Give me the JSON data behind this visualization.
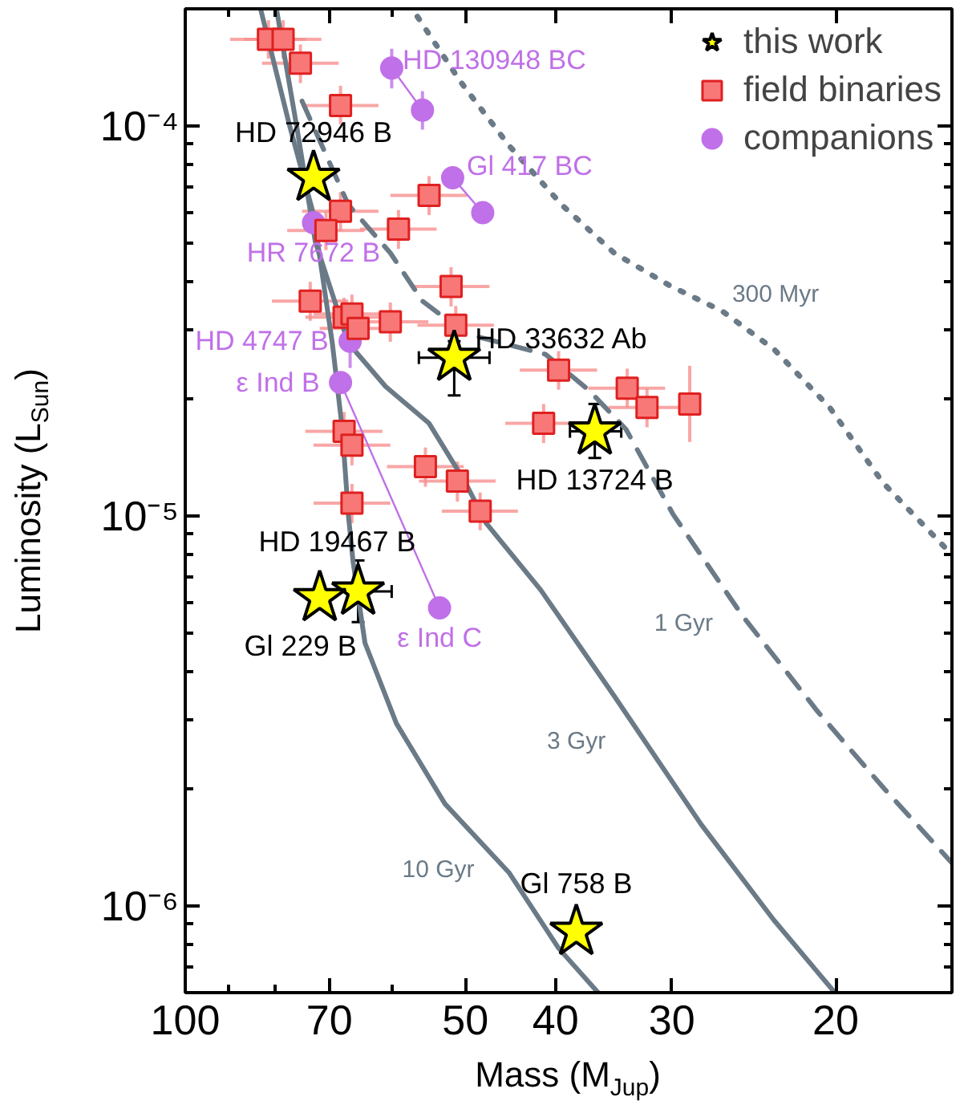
{
  "chart_data": {
    "type": "scatter",
    "xlabel": "Mass (M$_{Jup}$)",
    "ylabel": "Luminosity (L$_{Sun}$)",
    "log": "xy",
    "legend": "top right",
    "grid": false,
    "xlim": [
      100,
      15
    ],
    "xticks": [
      100,
      {
        "value": 90,
        "label": null
      },
      {
        "value": 80,
        "label": null
      },
      70,
      {
        "value": 60,
        "label": null
      },
      50,
      40,
      30,
      20
    ],
    "ylim": [
      6e-07,
      0.0002
    ],
    "yticks": [
      {
        "value": 7e-07,
        "label": null
      },
      {
        "value": 8e-07,
        "label": null
      },
      {
        "value": 9e-07,
        "label": null
      },
      {
        "value": 1e-06,
        "label": "10⁻⁶"
      },
      {
        "value": 2e-06,
        "label": null
      },
      {
        "value": 3e-06,
        "label": null
      },
      {
        "value": 4e-06,
        "label": null
      },
      {
        "value": 5e-06,
        "label": null
      },
      {
        "value": 6e-06,
        "label": null
      },
      {
        "value": 7e-06,
        "label": null
      },
      {
        "value": 8e-06,
        "label": null
      },
      {
        "value": 9e-06,
        "label": null
      },
      {
        "value": 1e-05,
        "label": "10⁻⁵"
      },
      {
        "value": 2e-05,
        "label": null
      },
      {
        "value": 3e-05,
        "label": null
      },
      {
        "value": 4e-05,
        "label": null
      },
      {
        "value": 5e-05,
        "label": null
      },
      {
        "value": 6e-05,
        "label": null
      },
      {
        "value": 7e-05,
        "label": null
      },
      {
        "value": 8e-05,
        "label": null
      },
      {
        "value": 9e-05,
        "label": null
      },
      {
        "value": 0.0001,
        "label": "10⁻⁴"
      }
    ],
    "annotations": [
      "10 Gyr",
      "3 Gyr",
      "1 Gyr",
      "300 Myr"
    ],
    "series": [
      {
        "type": "line",
        "line_style": "solid",
        "color": "#6b7a87",
        "x": [
          83.0,
          77.3,
          72.8,
          69.5,
          67.8,
          66.8,
          66.0,
          64.1,
          59.3,
          52.6,
          44.9,
          39.7,
          36.0
        ],
        "values": [
          0.0002,
          0.000101,
          5.94e-05,
          2.78e-05,
          1.67e-05,
          1.01e-05,
          7.6e-06,
          4.73e-06,
          2.94e-06,
          1.83e-06,
          1.22e-06,
          7.8e-07,
          6e-07
        ]
      },
      {
        "type": "line",
        "line_style": "solid",
        "color": "#6b7a87",
        "x": [
          79.8,
          75.8,
          72.5,
          66.8,
          60.9,
          54.7,
          50.0,
          47.5,
          41.5,
          34.6,
          27.9,
          23.3,
          20.1
        ],
        "values": [
          0.0002,
          9.8e-05,
          5.06e-05,
          2.78e-05,
          2.15e-05,
          1.73e-05,
          1.22e-05,
          9.6e-06,
          6.47e-06,
          3.46e-06,
          1.62e-06,
          9.2e-07,
          6.05e-07
        ]
      },
      {
        "type": "line",
        "line_style": "dashed",
        "color": "#6b7a87",
        "x": [
          74.9,
          66.8,
          60.2,
          55.6,
          50.0,
          41.0,
          36.8,
          33.6,
          29.9,
          25.2,
          20.9,
          17.8,
          15.0
        ],
        "values": [
          0.000116,
          6.29e-05,
          4.73e-05,
          3.56e-05,
          2.94e-05,
          2.6e-05,
          2.1e-05,
          1.67e-05,
          1.01e-05,
          5.56e-06,
          3.15e-06,
          2.02e-06,
          1.29e-06
        ]
      },
      {
        "type": "line",
        "line_style": "dotted",
        "color": "#6b7a87",
        "x": [
          56.3,
          50.6,
          44.9,
          39.4,
          34.6,
          30.2,
          26.5,
          23.3,
          20.3,
          17.8,
          15.0
        ],
        "values": [
          0.000191,
          0.00013,
          8.93e-05,
          6.29e-05,
          4.73e-05,
          3.91e-05,
          3.36e-05,
          2.68e-05,
          1.9e-05,
          1.22e-05,
          7.96e-06
        ]
      },
      {
        "type": "line",
        "line_style": "solid",
        "color": "#c070e8",
        "x": [
          60.0,
          55.6
        ],
        "values": [
          0.000141,
          0.00011
        ]
      },
      {
        "type": "line",
        "line_style": "solid",
        "color": "#c070e8",
        "x": [
          51.6,
          47.9
        ],
        "values": [
          7.38e-05,
          6e-05
        ]
      },
      {
        "type": "line",
        "line_style": "solid",
        "color": "#c070e8",
        "x": [
          68.1,
          53.3
        ],
        "values": [
          2.2e-05,
          5.82e-06
        ]
      },
      {
        "name": "companions",
        "marker": "circle",
        "color": "#c070e8",
        "x": [
          60.0,
          55.6,
          51.6,
          47.9,
          72.8,
          66.5,
          68.1,
          53.3
        ],
        "values": [
          0.000141,
          0.00011,
          7.38e-05,
          6e-05,
          5.66e-05,
          2.81e-05,
          2.2e-05,
          5.82e-06
        ],
        "errors": [
          [
            0.000125,
            0.000158
          ],
          [
            9.8e-05,
            0.000123
          ],
          null,
          null,
          null,
          [
            2.4e-05,
            3.3e-05
          ],
          null,
          null
        ],
        "value_labels": [
          "HD 130948 BC",
          null,
          "Gl 417 BC",
          null,
          "HR 7672 B",
          "HD 4747 B",
          "ε Ind B",
          "ε Ind C"
        ]
      },
      {
        "name": "field binaries",
        "marker": "square",
        "color": "#f87878",
        "x": [
          81.4,
          78.5,
          75.2,
          68.1,
          54.7,
          68.1,
          70.6,
          59.0,
          51.8,
          73.4,
          67.5,
          66.2,
          65.2,
          60.2,
          51.2,
          67.5,
          66.2,
          55.2,
          51.0,
          66.2,
          48.2,
          39.7,
          41.2,
          33.5,
          31.9,
          28.7
        ],
        "values": [
          0.000167,
          0.000167,
          0.000145,
          0.000113,
          6.65e-05,
          6.05e-05,
          5.4e-05,
          5.45e-05,
          3.88e-05,
          3.56e-05,
          3.24e-05,
          3.3e-05,
          3.03e-05,
          3.15e-05,
          3.09e-05,
          1.65e-05,
          1.52e-05,
          1.34e-05,
          1.23e-05,
          1.08e-05,
          1.03e-05,
          2.37e-05,
          1.73e-05,
          2.13e-05,
          1.9e-05,
          1.94e-05
        ],
        "errors": [
          [
            0.000149,
            0.000187
          ],
          [
            0.000149,
            0.000187
          ],
          [
            0.000129,
            0.000162
          ],
          [
            0.000101,
            0.000127
          ],
          [
            5.92e-05,
            7.45e-05
          ],
          [
            5.38e-05,
            6.78e-05
          ],
          [
            4.81e-05,
            6.05e-05
          ],
          [
            4.85e-05,
            6.1e-05
          ],
          [
            3.45e-05,
            4.35e-05
          ],
          [
            3.17e-05,
            3.99e-05
          ],
          [
            2.88e-05,
            3.63e-05
          ],
          [
            2.94e-05,
            3.7e-05
          ],
          [
            2.7e-05,
            3.39e-05
          ],
          [
            2.8e-05,
            3.53e-05
          ],
          [
            2.75e-05,
            3.46e-05
          ],
          [
            1.47e-05,
            1.85e-05
          ],
          [
            1.35e-05,
            1.7e-05
          ],
          [
            1.19e-05,
            1.5e-05
          ],
          [
            1.09e-05,
            1.38e-05
          ],
          [
            9.6e-06,
            1.21e-05
          ],
          [
            9.2e-06,
            1.15e-05
          ],
          [
            2.11e-05,
            2.65e-05
          ],
          [
            1.54e-05,
            1.94e-05
          ],
          [
            1.9e-05,
            2.39e-05
          ],
          [
            1.69e-05,
            2.13e-05
          ],
          [
            1.55e-05,
            2.43e-05
          ]
        ],
        "xerrors": [
          [
            74.1,
            89.5
          ],
          [
            71.4,
            86.4
          ],
          [
            68.4,
            82.7
          ],
          [
            62.0,
            74.9
          ],
          [
            49.8,
            60.2
          ],
          [
            62.0,
            74.9
          ],
          [
            64.2,
            77.7
          ],
          [
            53.7,
            64.9
          ],
          [
            47.1,
            57.0
          ],
          [
            66.8,
            80.7
          ],
          [
            61.4,
            74.3
          ],
          [
            60.2,
            72.8
          ],
          [
            59.3,
            71.7
          ],
          [
            54.8,
            66.2
          ],
          [
            46.6,
            56.3
          ],
          [
            61.4,
            74.3
          ],
          [
            60.2,
            72.8
          ],
          [
            50.2,
            60.7
          ],
          [
            46.4,
            56.1
          ],
          [
            60.2,
            72.8
          ],
          [
            43.9,
            53.0
          ],
          [
            36.1,
            43.7
          ],
          [
            37.5,
            45.3
          ],
          [
            30.5,
            36.9
          ],
          [
            29.0,
            35.1
          ],
          null
        ]
      },
      {
        "name": "this work",
        "marker": "star",
        "color": "#ffff00",
        "x": [
          72.8,
          51.4,
          36.3,
          65.2,
          71.7,
          38.0
        ],
        "values": [
          7.38e-05,
          2.55e-05,
          1.65e-05,
          6.41e-06,
          6.17e-06,
          8.6e-07
        ],
        "errors": [
          null,
          [
            2.04e-05,
            2.81e-05
          ],
          [
            1.41e-05,
            1.94e-05
          ],
          [
            5.35e-06,
            7.7e-06
          ],
          null,
          null
        ],
        "xerrors": [
          null,
          [
            47.1,
            56.1
          ],
          [
            34.0,
            38.6
          ],
          [
            60.0,
            70.8
          ],
          null,
          null
        ],
        "value_labels": [
          "HD 72946 B",
          "HD 33632 Ab",
          "HD 13724 B",
          "HD 19467 B",
          "Gl 229 B",
          "Gl 758 B"
        ]
      }
    ]
  }
}
